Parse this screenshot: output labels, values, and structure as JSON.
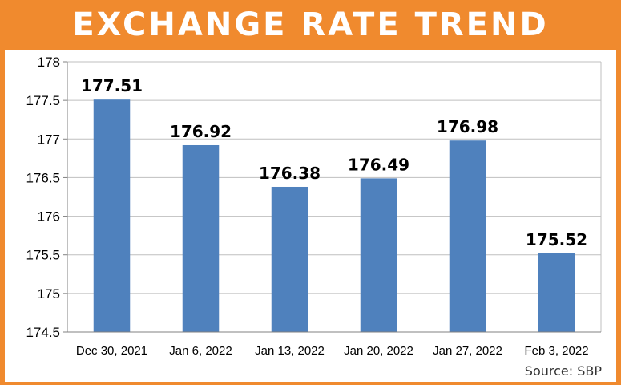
{
  "header": {
    "title": "EXCHANGE RATE TREND"
  },
  "source": "Source: SBP",
  "colors": {
    "frame": "#F08A2E",
    "bar": "#4F81BD",
    "grid": "#BFBFBF",
    "text": "#000000"
  },
  "chart_data": {
    "type": "bar",
    "title": "EXCHANGE RATE TREND",
    "xlabel": "",
    "ylabel": "",
    "categories": [
      "Dec 30, 2021",
      "Jan 6, 2022",
      "Jan 13, 2022",
      "Jan 20, 2022",
      "Jan 27, 2022",
      "Feb 3, 2022"
    ],
    "values": [
      177.51,
      176.92,
      176.38,
      176.49,
      176.98,
      175.52
    ],
    "value_labels": [
      "177.51",
      "176.92",
      "176.38",
      "176.49",
      "176.98",
      "175.52"
    ],
    "ylim": [
      174.5,
      178
    ],
    "yticks": [
      174.5,
      175,
      175.5,
      176,
      176.5,
      177,
      177.5,
      178
    ],
    "ytick_labels": [
      "174.5",
      "175",
      "175.5",
      "176",
      "176.5",
      "177",
      "177.5",
      "178"
    ],
    "grid": true,
    "legend": "none"
  }
}
